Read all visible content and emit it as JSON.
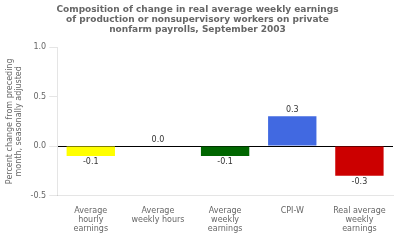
{
  "chart_data": {
    "type": "bar",
    "title": "Composition of change in real average weekly earnings\nof production or nonsupervisory workers on private\nnonfarm payrolls, September 2003",
    "categories": [
      "Average\nhourly\nearnings",
      "Average\nweekly hours",
      "Average\nweekly\nearnings",
      "CPI-W",
      "Real average\nweekly\nearnings"
    ],
    "values": [
      -0.1,
      0.0,
      -0.1,
      0.3,
      -0.3
    ],
    "value_labels": [
      "-0.1",
      "0.0",
      "-0.1",
      "0.3",
      "-0.3"
    ],
    "colors": [
      "#ffff00",
      "#ffffff",
      "#006600",
      "#4169e1",
      "#cc0000"
    ],
    "ylabel": "Percent change from preceding\nmonth, seasonally adjusted",
    "ylim": [
      -0.5,
      1.0
    ],
    "yticks": [
      -0.5,
      {
        "value": 0.0,
        "label": "0.0"
      },
      0.5,
      {
        "value": 1.0,
        "label": "1.0"
      }
    ],
    "grid": false,
    "data_labels": true
  }
}
